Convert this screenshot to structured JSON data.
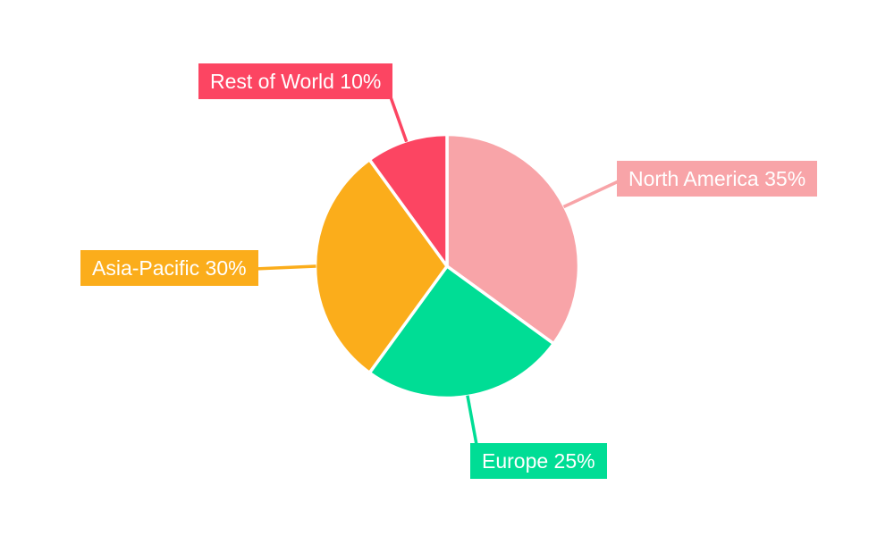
{
  "page": {
    "background": "#ffffff"
  },
  "chart_data": {
    "type": "pie",
    "start_angle_deg": 0,
    "direction": "clockwise",
    "labels_outside": true,
    "legend": "none",
    "value_unit": "%",
    "separator_color": "#ffffff",
    "label_text_color": "#ffffff",
    "categories": [
      "North America",
      "Europe",
      "Asia-Pacific",
      "Rest of World"
    ],
    "values": [
      35,
      25,
      30,
      10
    ],
    "slices": [
      {
        "label": "North America",
        "value": 35,
        "display": "North America 35%",
        "color": "#F8A4A8"
      },
      {
        "label": "Europe",
        "value": 25,
        "display": "Europe 25%",
        "color": "#00DD95"
      },
      {
        "label": "Asia-Pacific",
        "value": 30,
        "display": "Asia-Pacific 30%",
        "color": "#FBAD1B"
      },
      {
        "label": "Rest of World",
        "value": 10,
        "display": "Rest of World 10%",
        "color": "#FC4562"
      }
    ]
  }
}
